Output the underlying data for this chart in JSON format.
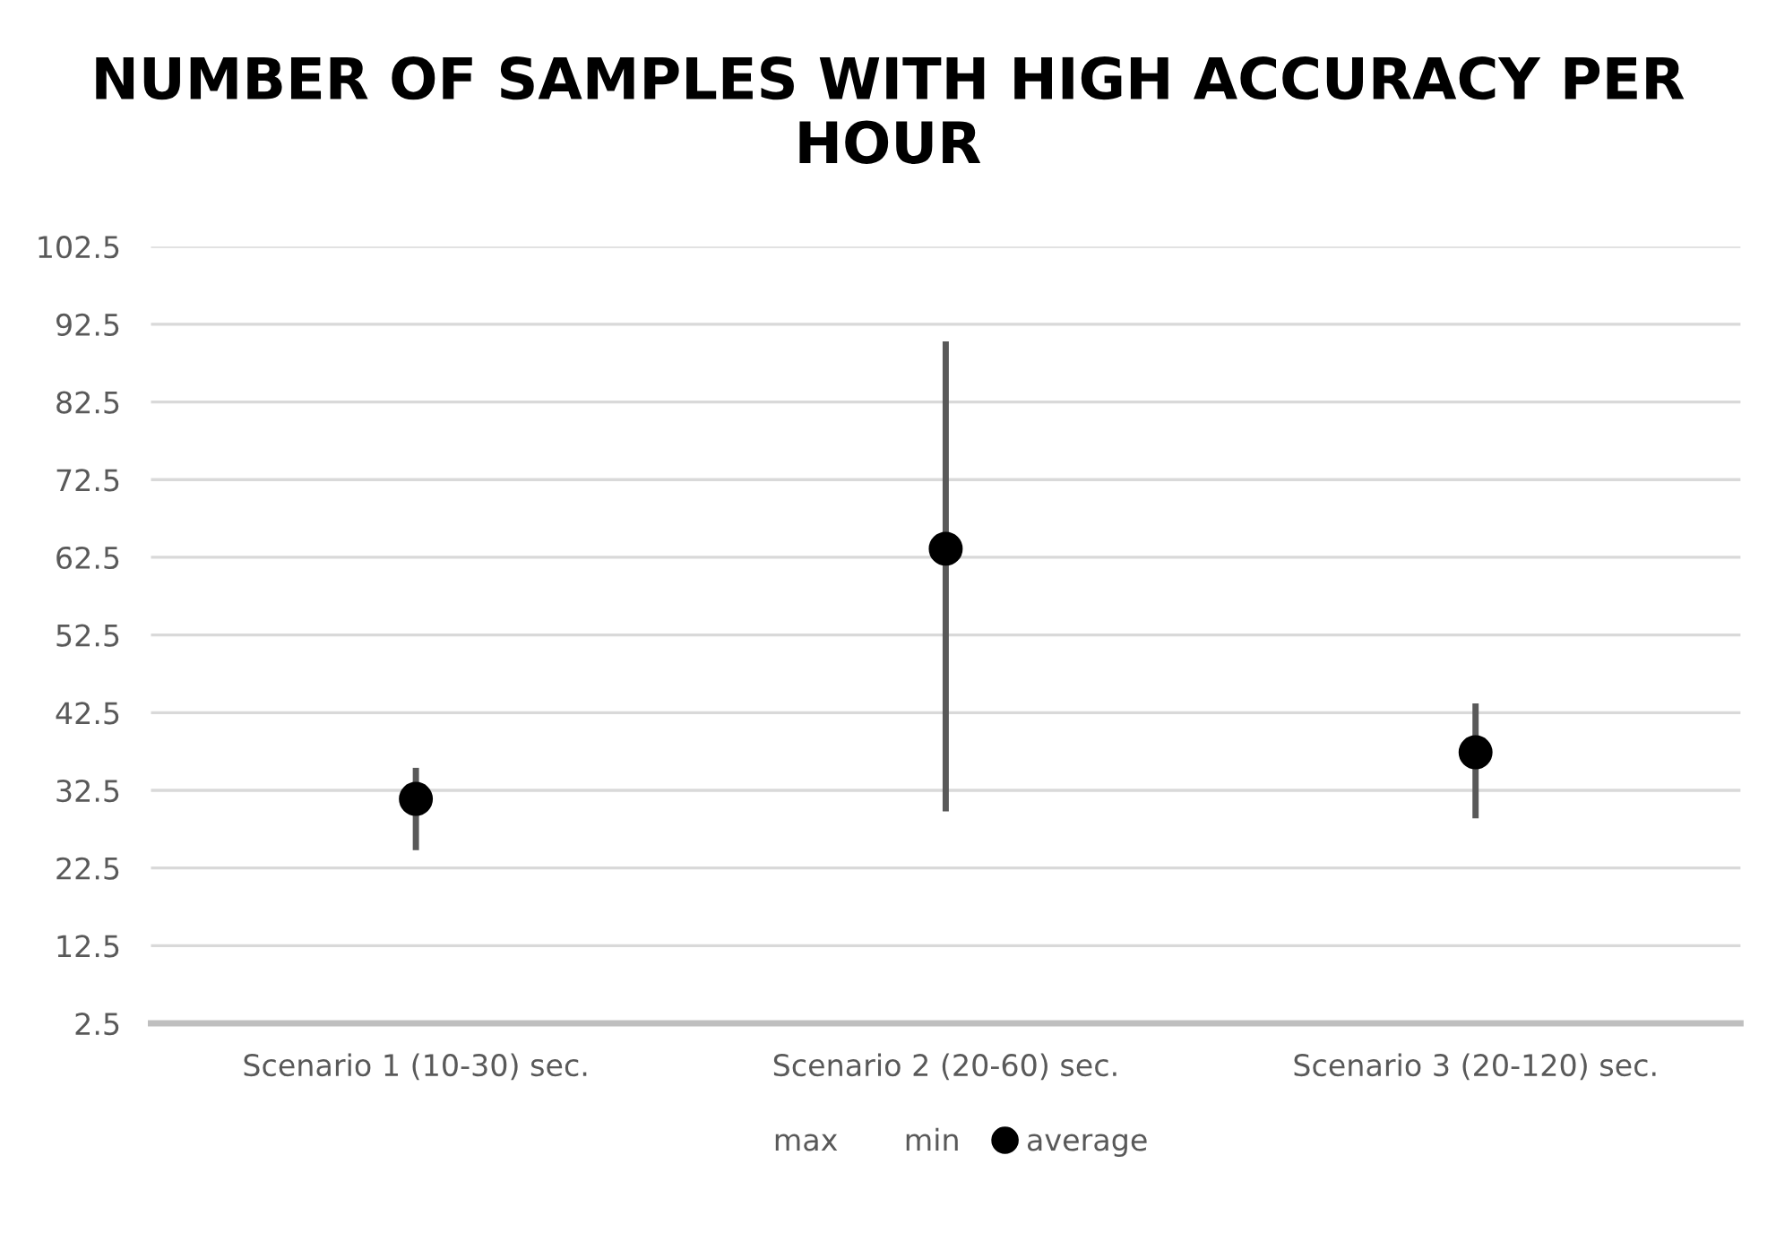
{
  "chart_data": {
    "type": "scatter",
    "title": "NUMBER OF SAMPLES WITH HIGH ACCURACY PER HOUR",
    "categories": [
      "Scenario 1 (10-30) sec.",
      "Scenario 2 (20-60) sec.",
      "Scenario 3 (20-120) sec."
    ],
    "series": [
      {
        "name": "average",
        "marker": "circle",
        "color": "#000000",
        "values": [
          31.4,
          63.6,
          37.4
        ],
        "errors": [
          [
            24.8,
            35.4
          ],
          [
            29.8,
            90.3
          ],
          [
            28.9,
            43.7
          ]
        ]
      }
    ],
    "annotations": [
      "max",
      "min"
    ],
    "ylim": [
      2.5,
      102.5
    ],
    "yticks": [
      2.5,
      12.5,
      22.5,
      32.5,
      42.5,
      52.5,
      62.5,
      72.5,
      82.5,
      92.5,
      102.5
    ],
    "grid": "y",
    "legend": "bottom"
  }
}
